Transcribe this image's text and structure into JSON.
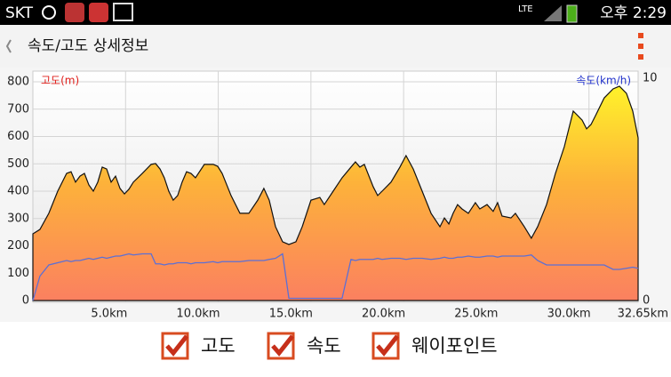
{
  "status_bar": {
    "carrier": "SKT",
    "network": "LTE",
    "time": "오후 2:29"
  },
  "app_bar": {
    "title": "속도/고도 상세정보"
  },
  "chart_data": {
    "type": "area",
    "y_label": "고도(m)",
    "y2_label": "속도(km/h)",
    "x": [
      0,
      0.38,
      0.86,
      1.34,
      1.82,
      2.06,
      2.3,
      2.54,
      2.78,
      3.02,
      3.26,
      3.5,
      3.74,
      3.98,
      4.22,
      4.46,
      4.7,
      4.94,
      5.18,
      5.42,
      5.9,
      6.38,
      6.62,
      6.86,
      7.09,
      7.33,
      7.57,
      7.81,
      8.05,
      8.29,
      8.53,
      8.77,
      9.25,
      9.73,
      9.97,
      10.21,
      10.69,
      11.17,
      11.65,
      12.13,
      12.46,
      12.75,
      13.09,
      13.47,
      13.81,
      14.19,
      14.53,
      15.0,
      15.48,
      15.72,
      16.2,
      16.68,
      17.16,
      17.4,
      17.64,
      17.88,
      18.36,
      18.6,
      18.84,
      19.32,
      19.8,
      20.13,
      20.52,
      21.0,
      21.48,
      21.96,
      22.2,
      22.44,
      22.67,
      22.91,
      23.15,
      23.49,
      23.87,
      24.11,
      24.5,
      24.83,
      25.07,
      25.31,
      25.79,
      26.03,
      26.51,
      26.89,
      27.23,
      27.71,
      28.19,
      28.67,
      29.15,
      29.63,
      29.87,
      30.11,
      30.35,
      30.82,
      31.3,
      31.64,
      32.02,
      32.36,
      32.65
    ],
    "series": [
      {
        "name": "고도",
        "color": "#f7941d",
        "values": [
          244,
          260,
          319,
          400,
          465,
          471,
          433,
          455,
          465,
          423,
          400,
          433,
          488,
          481,
          433,
          455,
          410,
          390,
          407,
          433,
          465,
          498,
          501,
          481,
          449,
          400,
          367,
          384,
          433,
          471,
          465,
          449,
          498,
          498,
          491,
          465,
          384,
          319,
          319,
          367,
          410,
          367,
          270,
          215,
          205,
          215,
          270,
          367,
          377,
          351,
          400,
          449,
          488,
          507,
          488,
          498,
          416,
          384,
          400,
          433,
          488,
          530,
          481,
          400,
          319,
          270,
          302,
          280,
          319,
          351,
          335,
          319,
          358,
          335,
          351,
          326,
          358,
          309,
          302,
          319,
          270,
          228,
          270,
          351,
          465,
          563,
          693,
          660,
          628,
          644,
          676,
          741,
          774,
          784,
          758,
          693,
          595
        ]
      },
      {
        "name": "속도",
        "color": "#5b6fd6",
        "axis": "y2",
        "values": [
          0,
          1.1,
          1.6,
          1.7,
          1.8,
          1.75,
          1.8,
          1.8,
          1.85,
          1.9,
          1.85,
          1.9,
          1.95,
          1.9,
          1.95,
          2.0,
          2.0,
          2.05,
          2.1,
          2.05,
          2.1,
          2.1,
          1.65,
          1.65,
          1.6,
          1.65,
          1.65,
          1.7,
          1.7,
          1.7,
          1.65,
          1.7,
          1.7,
          1.75,
          1.7,
          1.75,
          1.75,
          1.75,
          1.8,
          1.8,
          1.8,
          1.85,
          1.9,
          2.1,
          0.1,
          0.1,
          0.1,
          0.1,
          0.1,
          0.1,
          0.1,
          0.1,
          1.85,
          1.8,
          1.85,
          1.85,
          1.85,
          1.9,
          1.85,
          1.9,
          1.9,
          1.85,
          1.9,
          1.9,
          1.85,
          1.9,
          1.95,
          1.9,
          1.9,
          1.95,
          1.95,
          2.0,
          1.95,
          1.95,
          2.0,
          2.0,
          1.95,
          2.0,
          2.0,
          2.0,
          2.0,
          2.05,
          1.8,
          1.6,
          1.6,
          1.6,
          1.6,
          1.6,
          1.6,
          1.6,
          1.6,
          1.6,
          1.4,
          1.4,
          1.45,
          1.5,
          1.45
        ]
      }
    ],
    "xlim": [
      0,
      32.65
    ],
    "xticks": [
      {
        "value": 5,
        "label": "5.0km"
      },
      {
        "value": 10,
        "label": "10.0km"
      },
      {
        "value": 15,
        "label": "15.0km"
      },
      {
        "value": 20,
        "label": "20.0km"
      },
      {
        "value": 25,
        "label": "25.0km"
      },
      {
        "value": 30,
        "label": "30.0km"
      },
      {
        "value": 32.65,
        "label": "32.65km"
      }
    ],
    "ylim": [
      0,
      800
    ],
    "yticks": [
      0,
      100,
      200,
      300,
      400,
      500,
      600,
      700,
      800
    ],
    "y2lim": [
      0,
      10
    ],
    "y2ticks": [
      0,
      10
    ],
    "grid": true
  },
  "toggles": [
    {
      "label": "웨이포인트",
      "checked": true
    }
  ]
}
